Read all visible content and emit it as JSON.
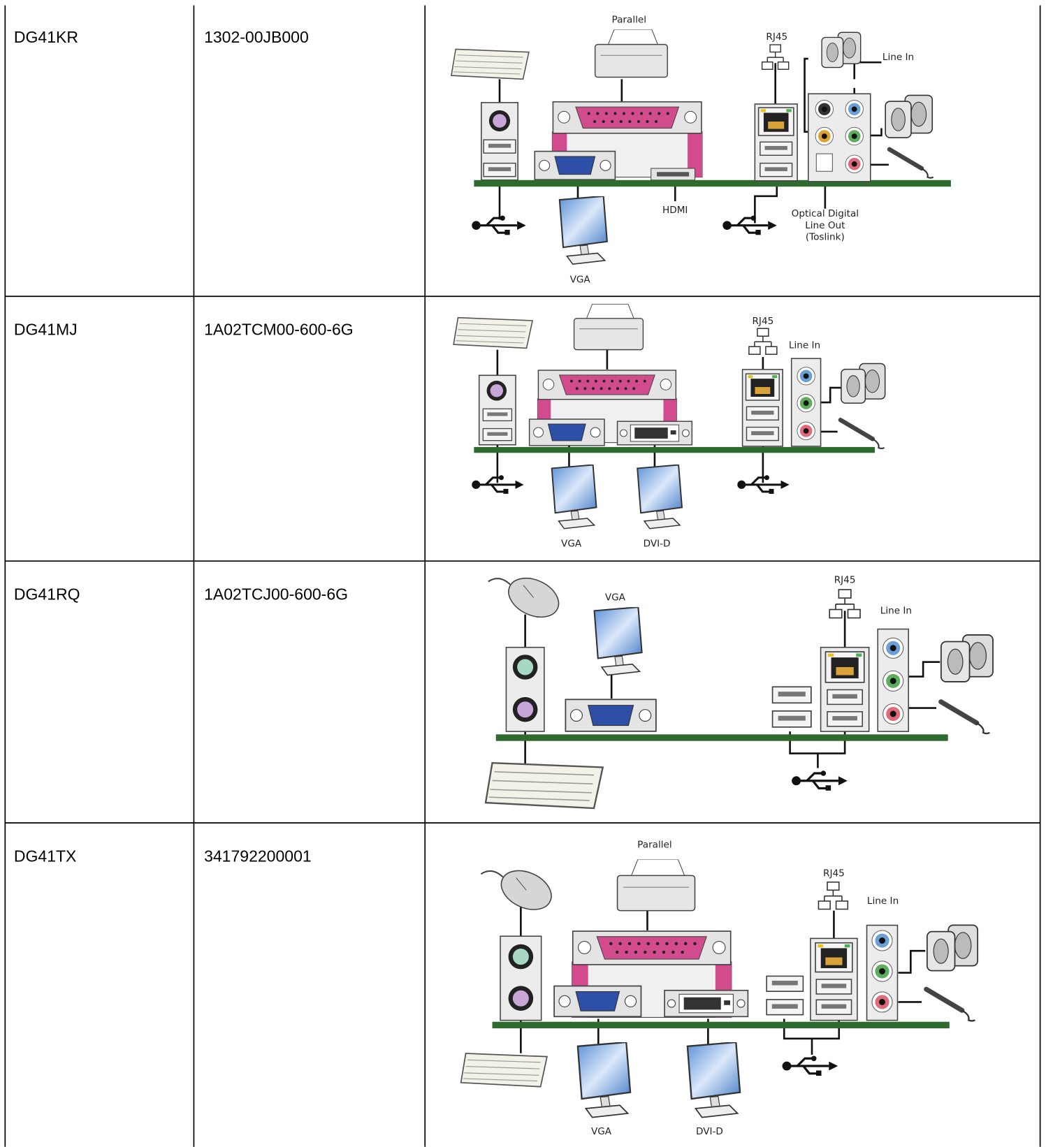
{
  "table": {
    "rows": [
      {
        "model": "DG41KR",
        "part_number": "1302-00JB000",
        "diagram_labels": [
          "Parallel",
          "RJ45",
          "Line In",
          "HDMI",
          "VGA",
          "Optical Digital",
          "Line Out",
          "(Toslink)"
        ]
      },
      {
        "model": "DG41MJ",
        "part_number": "1A02TCM00-600-6G",
        "diagram_labels": [
          "RJ45",
          "Line In",
          "VGA",
          "DVI-D"
        ]
      },
      {
        "model": "DG41RQ",
        "part_number": "1A02TCJ00-600-6G",
        "diagram_labels": [
          "RJ45",
          "VGA",
          "Line In"
        ]
      },
      {
        "model": "DG41TX",
        "part_number": "341792200001",
        "diagram_labels": [
          "Parallel",
          "RJ45",
          "Line In",
          "VGA",
          "DVI-D"
        ]
      }
    ]
  }
}
